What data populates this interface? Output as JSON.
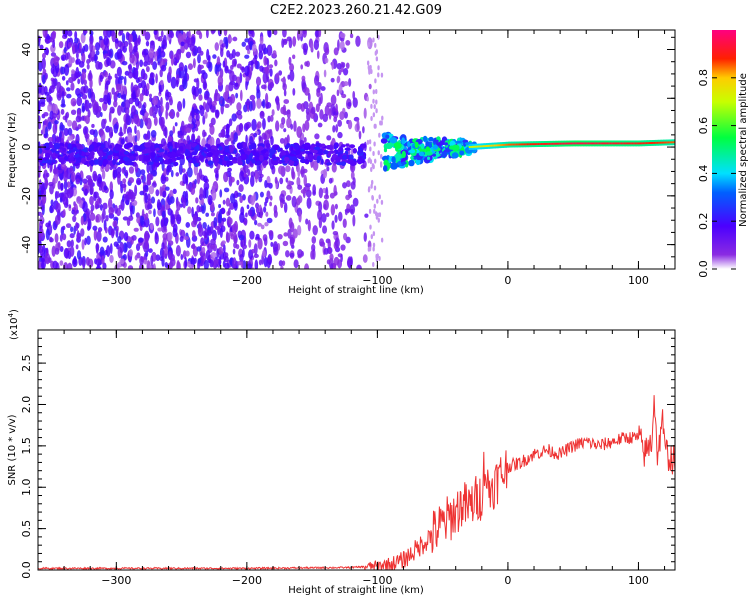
{
  "figure": {
    "title": "C2E2.2023.260.21.42.G09"
  },
  "chart_data": [
    {
      "type": "heatmap",
      "xlabel": "Height of straight line (km)",
      "ylabel": "Frequency (Hz)",
      "xlim": [
        -360,
        128
      ],
      "ylim": [
        -50,
        48
      ],
      "x_ticks": [
        -300,
        -200,
        -100,
        0,
        100
      ],
      "y_ticks": [
        -40,
        -20,
        0,
        20,
        40
      ],
      "y_tick_labels": [
        "-40",
        "-20",
        "0",
        "20",
        "40"
      ],
      "colorbar": {
        "label": "Normalized spectral amplitude",
        "range": [
          0,
          1
        ],
        "ticks": [
          0.0,
          0.2,
          0.4,
          0.6,
          0.8
        ],
        "tick_labels": [
          "0.0",
          "0.2",
          "0.4",
          "0.6",
          "0.8"
        ],
        "colormap": [
          "#ffffff",
          "#6a00ff",
          "#0000ff",
          "#00ffff",
          "#00ff00",
          "#ffff00",
          "#ff0000",
          "#ff0080"
        ]
      },
      "tone_ridge": [
        {
          "x": -110,
          "f": -3,
          "amp": 0.15
        },
        {
          "x": -90,
          "f": -2,
          "amp": 0.3
        },
        {
          "x": -60,
          "f": -1,
          "amp": 0.45
        },
        {
          "x": -30,
          "f": 0,
          "amp": 0.7
        },
        {
          "x": 0,
          "f": 1,
          "amp": 0.85
        },
        {
          "x": 50,
          "f": 1.5,
          "amp": 0.95
        },
        {
          "x": 100,
          "f": 1.5,
          "amp": 0.9
        },
        {
          "x": 128,
          "f": 2,
          "amp": 0.85
        }
      ]
    },
    {
      "type": "line",
      "xlabel": "Height of straight line (km)",
      "ylabel": "SNR (10 * v/v)",
      "y_multiplier": "(x10",
      "y_multiplier_exp": "4",
      "y_multiplier_close": ")",
      "xlim": [
        -360,
        128
      ],
      "ylim": [
        0,
        2.9
      ],
      "x_ticks": [
        -300,
        -200,
        -100,
        0,
        100
      ],
      "y_ticks": [
        0.0,
        0.5,
        1.0,
        1.5,
        2.0,
        2.5
      ],
      "y_tick_labels": [
        "0.0",
        "0.5",
        "1.0",
        "1.5",
        "2.0",
        "2.5"
      ],
      "color": "#ee3333",
      "series": [
        {
          "x": [
            -360,
            -300,
            -200,
            -120,
            -100,
            -90,
            -80,
            -70,
            -60,
            -50,
            -40,
            -35,
            -30,
            -25,
            -20,
            -18,
            -15,
            -10,
            -5,
            0,
            10,
            20,
            30,
            40,
            50,
            60,
            70,
            80,
            90,
            100,
            105,
            110,
            112,
            115,
            118,
            120,
            125,
            128
          ],
          "y": [
            0.02,
            0.02,
            0.02,
            0.03,
            0.05,
            0.07,
            0.12,
            0.25,
            0.4,
            0.55,
            0.7,
            0.8,
            0.75,
            0.85,
            0.9,
            1.3,
            0.95,
            1.05,
            1.15,
            1.25,
            1.3,
            1.4,
            1.45,
            1.4,
            1.5,
            1.55,
            1.5,
            1.55,
            1.6,
            1.6,
            1.4,
            1.55,
            2.1,
            1.3,
            1.9,
            1.45,
            1.35,
            1.3
          ]
        }
      ]
    }
  ]
}
